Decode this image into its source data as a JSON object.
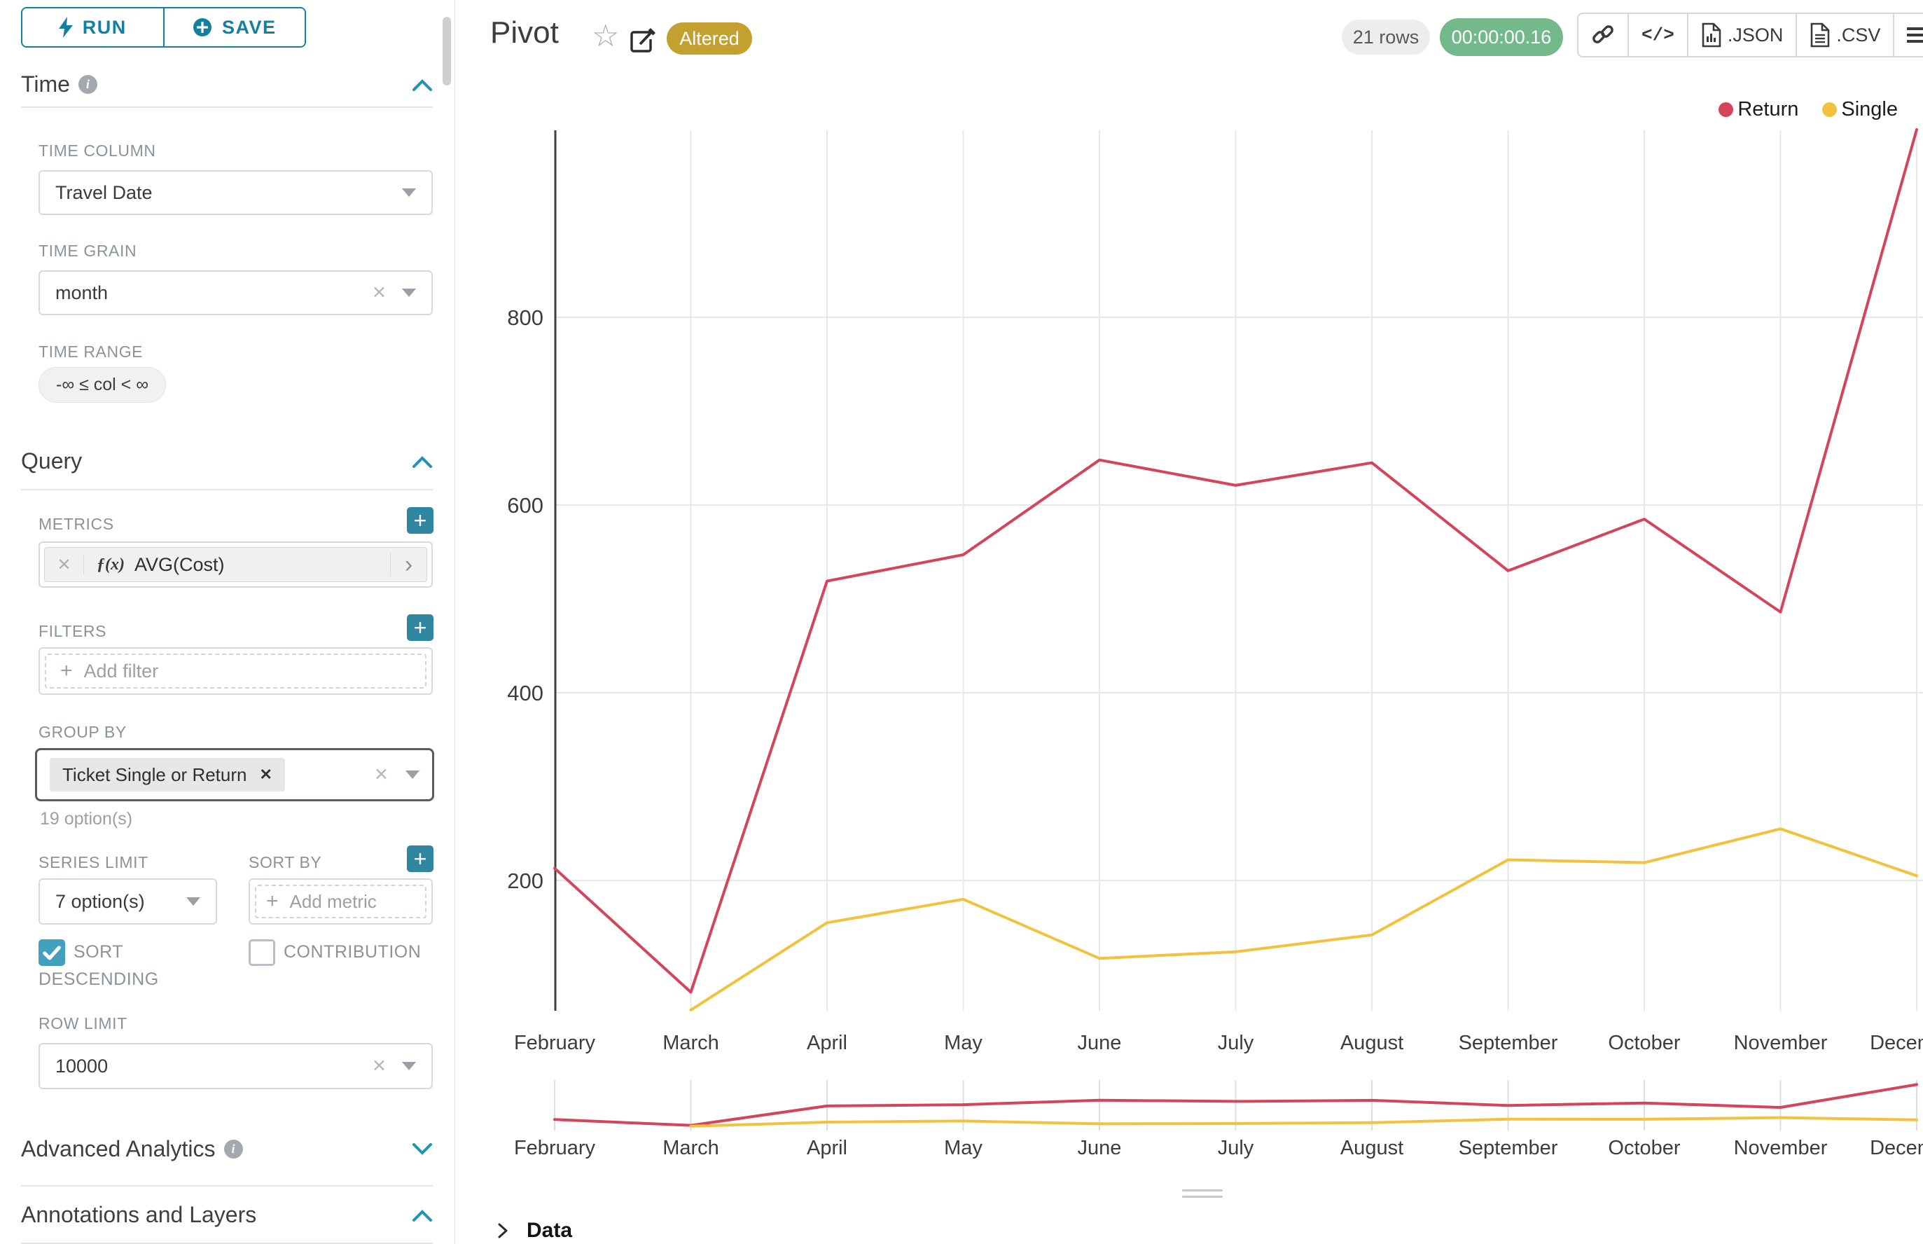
{
  "colors": {
    "accent": "#1e93b4",
    "accent_dark": "#14809f",
    "altered_badge": "#c3a02f",
    "timer_badge": "#74b98b",
    "rows_badge": "#ededed",
    "return_line": "#d3455b",
    "single_line": "#f2c23e"
  },
  "sidebar": {
    "run_label": "RUN",
    "save_label": "SAVE",
    "time_title": "Time",
    "time_column_label": "TIME COLUMN",
    "time_column_value": "Travel Date",
    "time_grain_label": "TIME GRAIN",
    "time_grain_value": "month",
    "time_range_label": "TIME RANGE",
    "time_range_value": "-∞ ≤ col < ∞",
    "query_title": "Query",
    "metrics_label": "METRICS",
    "metric_fx": "ƒ(x)",
    "metric_value": "AVG(Cost)",
    "filters_label": "FILTERS",
    "add_filter_label": "Add filter",
    "group_by_label": "GROUP BY",
    "group_by_tag": "Ticket Single or Return",
    "group_by_hint": "19 option(s)",
    "series_limit_label": "SERIES LIMIT",
    "series_limit_value": "7 option(s)",
    "sort_by_label": "SORT BY",
    "add_metric_label": "Add metric",
    "sort_descending_label": "SORT DESCENDING",
    "contribution_label": "CONTRIBUTION",
    "row_limit_label": "ROW LIMIT",
    "row_limit_value": "10000",
    "advanced_title": "Advanced Analytics",
    "annotations_title": "Annotations and Layers"
  },
  "header": {
    "title": "Pivot",
    "altered": "Altered",
    "rows": "21 rows",
    "timer": "00:00:00.16",
    "code_label": "</>",
    "json_label": ".JSON",
    "csv_label": ".CSV"
  },
  "data_panel": {
    "label": "Data"
  },
  "chart_data": {
    "type": "line",
    "title": "Pivot",
    "xlabel": "",
    "ylabel": "",
    "categories": [
      "February",
      "March",
      "April",
      "May",
      "June",
      "July",
      "August",
      "September",
      "October",
      "November",
      "December"
    ],
    "series": [
      {
        "name": "Return",
        "color": "#d3455b",
        "values": [
          213,
          81,
          519,
          547,
          648,
          621,
          645,
          530,
          585,
          486,
          1000
        ]
      },
      {
        "name": "Single",
        "color": "#f2c23e",
        "values": [
          null,
          62,
          155,
          180,
          117,
          124,
          142,
          222,
          219,
          255,
          205
        ]
      }
    ],
    "yticks": [
      200,
      400,
      600,
      800
    ],
    "ylim": [
      60,
      1010
    ],
    "grid": true,
    "legend_position": "top-right",
    "has_preview_brush": true
  }
}
